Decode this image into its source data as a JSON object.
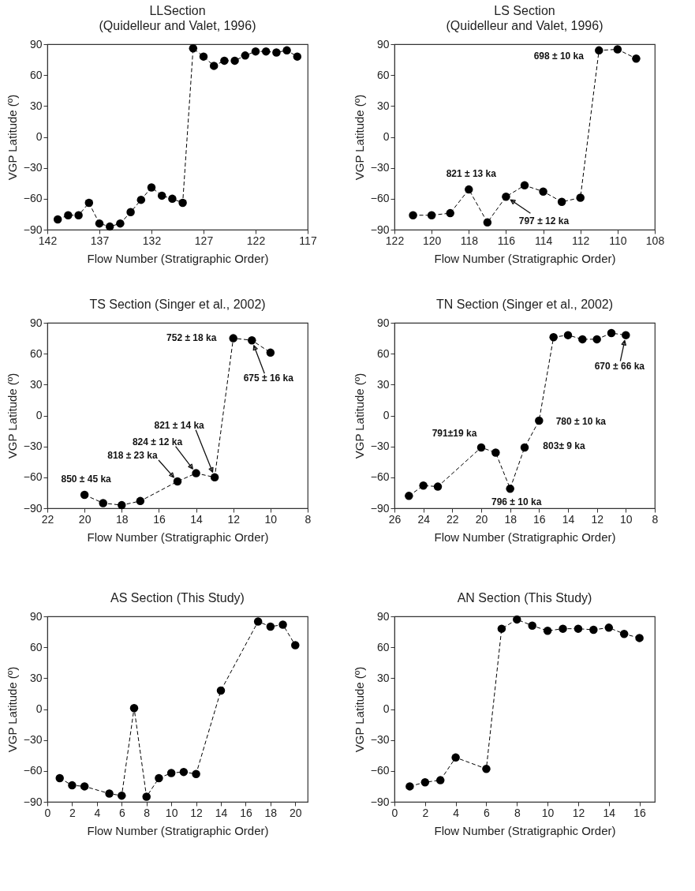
{
  "chart_data": [
    {
      "type": "line",
      "title": "LLSection",
      "subtitle": "(Quidelleur and Valet, 1996)",
      "xlabel": "Flow Number (Stratigraphic Order)",
      "ylabel": "VGP Latitude (º)",
      "marker": "circle",
      "line_style": "dashed",
      "xlim": [
        142,
        117
      ],
      "xticks": [
        142,
        137,
        132,
        127,
        122,
        117
      ],
      "ylim": [
        -90,
        90
      ],
      "yticks": [
        -90,
        -60,
        -30,
        0,
        30,
        60,
        90
      ],
      "x": [
        141,
        140,
        139,
        138,
        137,
        136,
        135,
        134,
        133,
        132,
        131,
        130,
        129,
        128,
        127,
        126,
        125,
        124,
        123,
        122,
        121,
        120,
        119,
        118
      ],
      "series": [
        {
          "color": "#000000",
          "values": [
            -80,
            -76,
            -76,
            -64,
            -84,
            -87,
            -84,
            -73,
            -61,
            -49,
            -57,
            -60,
            -64,
            86,
            78,
            69,
            74,
            74,
            79,
            83,
            83,
            82,
            84,
            78
          ]
        }
      ]
    },
    {
      "type": "line",
      "title": "LS Section",
      "subtitle": "(Quidelleur and Valet, 1996)",
      "xlabel": "Flow Number (Stratigraphic Order)",
      "ylabel": "VGP Latitude (º)",
      "marker": "circle",
      "line_style": "dashed",
      "xlim": [
        122,
        108
      ],
      "xticks": [
        122,
        120,
        118,
        116,
        114,
        112,
        110,
        108
      ],
      "ylim": [
        -90,
        90
      ],
      "yticks": [
        -90,
        -60,
        -30,
        0,
        30,
        60,
        90
      ],
      "x": [
        121,
        120,
        119,
        118,
        117,
        116,
        115,
        114,
        113,
        112,
        111,
        110,
        109
      ],
      "series": [
        {
          "color": "#000000",
          "values": [
            -76,
            -76,
            -74,
            -51,
            -83,
            -58,
            -47,
            -53,
            -63,
            -59,
            84,
            85,
            76
          ]
        }
      ],
      "annotations": [
        {
          "text": "698 ± 10 ka",
          "x": 111,
          "y": 84
        },
        {
          "text": "821 ± 13 ka",
          "x": 118,
          "y": -51
        },
        {
          "text": "797 ± 12 ka",
          "x": 116,
          "y": -58
        }
      ]
    },
    {
      "type": "line",
      "title": "TS Section (Singer et al., 2002)",
      "xlabel": "Flow Number (Stratigraphic Order)",
      "ylabel": "VGP Latitude (º)",
      "marker": "circle",
      "line_style": "dashed",
      "xlim": [
        22,
        8
      ],
      "xticks": [
        22,
        20,
        18,
        16,
        14,
        12,
        10,
        8
      ],
      "ylim": [
        -90,
        90
      ],
      "yticks": [
        -90,
        -60,
        -30,
        0,
        30,
        60,
        90
      ],
      "x": [
        20,
        19,
        18,
        17,
        15,
        14,
        13,
        12,
        11,
        10
      ],
      "series": [
        {
          "color": "#000000",
          "values": [
            -77,
            -85,
            -87,
            -83,
            -64,
            -56,
            -60,
            75,
            73,
            61
          ]
        }
      ],
      "annotations": [
        {
          "text": "752 ± 18 ka",
          "x": 12,
          "y": 75
        },
        {
          "text": "675 ± 16 ka",
          "x": 11,
          "y": 73
        },
        {
          "text": "821 ± 14 ka",
          "x": 13,
          "y": -60
        },
        {
          "text": "824 ± 12 ka",
          "x": 14,
          "y": -56
        },
        {
          "text": "818 ± 23 ka",
          "x": 15,
          "y": -64
        },
        {
          "text": "850 ± 45 ka",
          "x": 20,
          "y": -77
        }
      ]
    },
    {
      "type": "line",
      "title": "TN Section (Singer et al., 2002)",
      "xlabel": "Flow Number (Stratigraphic Order)",
      "ylabel": "VGP Latitude (º)",
      "marker": "circle",
      "line_style": "dashed",
      "xlim": [
        26,
        8
      ],
      "xticks": [
        26,
        24,
        22,
        20,
        18,
        16,
        14,
        12,
        10,
        8
      ],
      "ylim": [
        -90,
        90
      ],
      "yticks": [
        -90,
        -60,
        -30,
        0,
        30,
        60,
        90
      ],
      "x": [
        25,
        24,
        23,
        20,
        19,
        18,
        17,
        16,
        15,
        14,
        13,
        12,
        11,
        10
      ],
      "series": [
        {
          "color": "#000000",
          "values": [
            -78,
            -68,
            -69,
            -31,
            -36,
            -71,
            -31,
            -5,
            76,
            78,
            74,
            74,
            80,
            78
          ]
        }
      ],
      "annotations": [
        {
          "text": "670 ± 66 ka",
          "x": 10,
          "y": 78
        },
        {
          "text": "780 ± 10 ka",
          "x": 16,
          "y": -5
        },
        {
          "text": "803± 9 ka",
          "x": 17,
          "y": -31
        },
        {
          "text": "791±19 ka",
          "x": 20,
          "y": -31
        },
        {
          "text": "796 ± 10 ka",
          "x": 18,
          "y": -71
        }
      ]
    },
    {
      "type": "line",
      "title": "AS Section (This Study)",
      "xlabel": "Flow Number (Stratigraphic Order)",
      "ylabel": "VGP Latitude (º)",
      "marker": "circle",
      "line_style": "dashed",
      "xlim": [
        0,
        21
      ],
      "xticks": [
        0,
        2,
        4,
        6,
        8,
        10,
        12,
        14,
        16,
        18,
        20
      ],
      "ylim": [
        -90,
        90
      ],
      "yticks": [
        -90,
        -60,
        -30,
        0,
        30,
        60,
        90
      ],
      "x": [
        1,
        2,
        3,
        5,
        6,
        7,
        8,
        9,
        10,
        11,
        12,
        14,
        17,
        18,
        19,
        20
      ],
      "series": [
        {
          "color": "#000000",
          "values": [
            -67,
            -74,
            -75,
            -82,
            -84,
            1,
            -85,
            -67,
            -62,
            -61,
            -63,
            18,
            85,
            80,
            82,
            62
          ]
        }
      ]
    },
    {
      "type": "line",
      "title": "AN Section (This Study)",
      "xlabel": "Flow Number (Stratigraphic Order)",
      "ylabel": "VGP Latitude (º)",
      "marker": "circle",
      "line_style": "dashed",
      "xlim": [
        0,
        17
      ],
      "xticks": [
        0,
        2,
        4,
        6,
        8,
        10,
        12,
        14,
        16
      ],
      "ylim": [
        -90,
        90
      ],
      "yticks": [
        -90,
        -60,
        -30,
        0,
        30,
        60,
        90
      ],
      "x": [
        1,
        2,
        3,
        4,
        6,
        7,
        8,
        9,
        10,
        11,
        12,
        13,
        14,
        15,
        16
      ],
      "series": [
        {
          "color": "#000000",
          "values": [
            -75,
            -71,
            -69,
            -47,
            -58,
            78,
            87,
            81,
            76,
            78,
            78,
            77,
            79,
            73,
            69
          ]
        }
      ]
    }
  ]
}
